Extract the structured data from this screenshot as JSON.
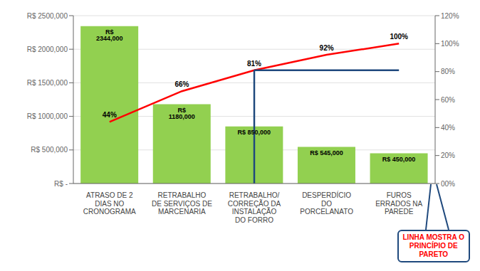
{
  "chart_data": {
    "type": "bar",
    "categories": [
      "ATRASO DE 2\nDIAS NO\nCRONOGRAMA",
      "RETRABALHO\nDE SERVIÇOS DE\nMARCENARIA",
      "RETRABALHO/\nCORREÇÃO DA\nINSTALAÇÃO\nDO FORRO",
      "DESPERDÍCIO\nDO\nPORCELANATO",
      "FUROS\nERRADOS NA\nPAREDE"
    ],
    "series": [
      {
        "type": "bar",
        "color": "#92D050",
        "values": [
          2344000,
          1180000,
          850000,
          545000,
          450000
        ],
        "value_labels": [
          "R$ 2344,000",
          "R$ 1180,000",
          "R$ 850,000",
          "R$ 545,000",
          "R$ 450,000"
        ]
      },
      {
        "type": "line",
        "axis": "y2",
        "color": "#FF0000",
        "values": [
          44,
          66,
          81,
          92,
          100
        ],
        "value_labels": [
          "44%",
          "66%",
          "81%",
          "92%",
          "100%"
        ]
      }
    ],
    "data_labels": true,
    "ylim": [
      0,
      2500000
    ],
    "yticks": [
      {
        "value": 0,
        "label": "R$ -"
      },
      {
        "value": 500000,
        "label": "R$ 500,000"
      },
      {
        "value": 1000000,
        "label": "R$ 1000,000"
      },
      {
        "value": 1500000,
        "label": "R$ 1500,000"
      },
      {
        "value": 2000000,
        "label": "R$ 2000,000"
      },
      {
        "value": 2500000,
        "label": "R$ 2500,000"
      }
    ],
    "y2lim": [
      0,
      120
    ],
    "y2ticks": [
      {
        "value": 0,
        "label": "00%"
      },
      {
        "value": 20,
        "label": "20%"
      },
      {
        "value": 40,
        "label": "40%"
      },
      {
        "value": 60,
        "label": "60%"
      },
      {
        "value": 80,
        "label": "80%"
      },
      {
        "value": 100,
        "label": "100%"
      },
      {
        "value": 120,
        "label": "120%"
      }
    ],
    "grid": true,
    "reference_line": {
      "axis": "y2",
      "value": 81,
      "from": "RETRABALHO/\nCORREÇÃO DA\nINSTALAÇÃO\nDO FORRO",
      "color": "#1F497D"
    },
    "annotations": [
      {
        "text": "LINHA MOSTRA O\nPRINCÍPIO DE\nPARETO",
        "color": "#FF0000"
      }
    ]
  }
}
